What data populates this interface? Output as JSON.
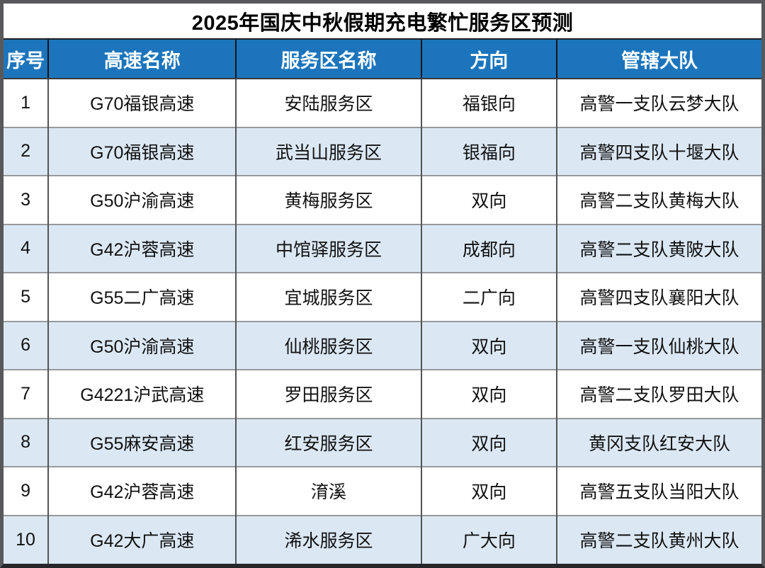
{
  "title": "2025年国庆中秋假期充电繁忙服务区预测",
  "table": {
    "headers": [
      "序号",
      "高速名称",
      "服务区名称",
      "方向",
      "管辖大队"
    ],
    "rows": [
      {
        "no": "1",
        "highway": "G70福银高速",
        "service_area": "安陆服务区",
        "direction": "福银向",
        "brigade": "高警一支队云梦大队"
      },
      {
        "no": "2",
        "highway": "G70福银高速",
        "service_area": "武当山服务区",
        "direction": "银福向",
        "brigade": "高警四支队十堰大队"
      },
      {
        "no": "3",
        "highway": "G50沪渝高速",
        "service_area": "黄梅服务区",
        "direction": "双向",
        "brigade": "高警二支队黄梅大队"
      },
      {
        "no": "4",
        "highway": "G42沪蓉高速",
        "service_area": "中馆驿服务区",
        "direction": "成都向",
        "brigade": "高警二支队黄陂大队"
      },
      {
        "no": "5",
        "highway": "G55二广高速",
        "service_area": "宜城服务区",
        "direction": "二广向",
        "brigade": "高警四支队襄阳大队"
      },
      {
        "no": "6",
        "highway": "G50沪渝高速",
        "service_area": "仙桃服务区",
        "direction": "双向",
        "brigade": "高警一支队仙桃大队"
      },
      {
        "no": "7",
        "highway": "G4221沪武高速",
        "service_area": "罗田服务区",
        "direction": "双向",
        "brigade": "高警二支队罗田大队"
      },
      {
        "no": "8",
        "highway": "G55麻安高速",
        "service_area": "红安服务区",
        "direction": "双向",
        "brigade": "黄冈支队红安大队"
      },
      {
        "no": "9",
        "highway": "G42沪蓉高速",
        "service_area": "淯溪",
        "direction": "双向",
        "brigade": "高警五支队当阳大队"
      },
      {
        "no": "10",
        "highway": "G42大广高速",
        "service_area": "浠水服务区",
        "direction": "广大向",
        "brigade": "高警二支队黄州大队"
      }
    ]
  },
  "colors": {
    "header_bg": "#1C75BC",
    "header_text": "#FFFFFF",
    "row_bg": "#FFFFFF",
    "row_alt_bg": "#DBE8F4",
    "body_text": "#111111"
  }
}
